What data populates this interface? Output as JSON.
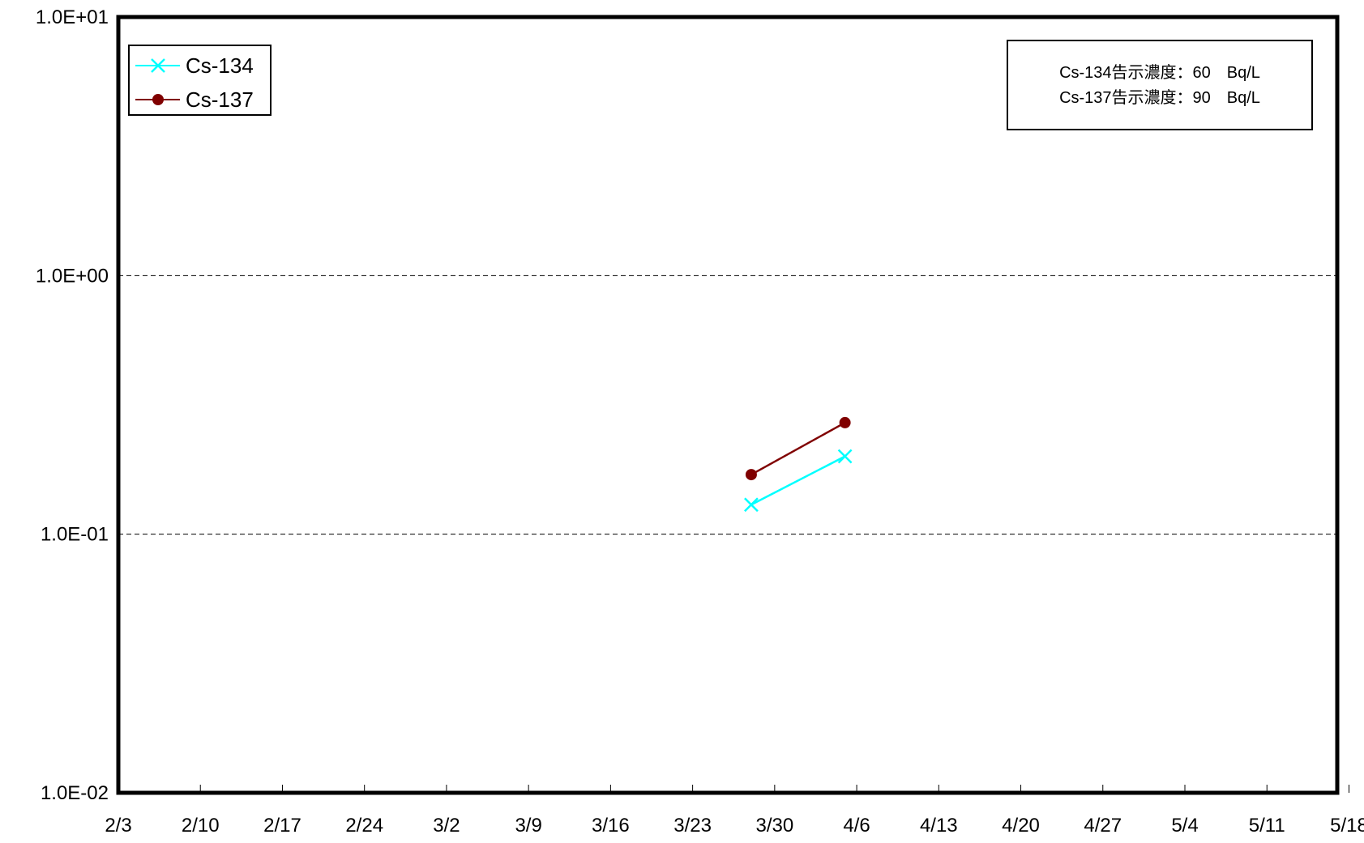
{
  "chart_data": {
    "type": "line",
    "title": "",
    "xlabel": "",
    "ylabel": "",
    "x_axis": {
      "type": "date",
      "year": 2011,
      "min": "2011-02-03",
      "max": "2011-05-18",
      "tick_step_days": 7,
      "tick_labels": [
        "2/3",
        "2/10",
        "2/17",
        "2/24",
        "3/2",
        "3/9",
        "3/16",
        "3/23",
        "3/30",
        "4/6",
        "4/13",
        "4/20",
        "4/27",
        "5/4",
        "5/11",
        "5/18"
      ]
    },
    "y_axis": {
      "scale": "log",
      "min": 0.01,
      "max": 10,
      "tick_values": [
        0.01,
        0.1,
        1,
        10
      ],
      "tick_labels": [
        "1.0E-02",
        "1.0E-01",
        "1.0E+00",
        "1.0E+01"
      ],
      "gridlines": "dashed"
    },
    "series": [
      {
        "name": "Cs-134",
        "color": "#00FFFF",
        "marker": "x",
        "x": [
          "2011-03-29",
          "2011-04-06"
        ],
        "y": [
          0.13,
          0.2
        ]
      },
      {
        "name": "Cs-137",
        "color": "#800000",
        "marker": "circle",
        "x": [
          "2011-03-29",
          "2011-04-06"
        ],
        "y": [
          0.17,
          0.27
        ]
      }
    ],
    "legend_position": "top-left",
    "annotation": {
      "position": "top-right",
      "lines": [
        "Cs-134告示濃度：60　Bq/L",
        "Cs-137告示濃度：90　Bq/L"
      ]
    }
  }
}
